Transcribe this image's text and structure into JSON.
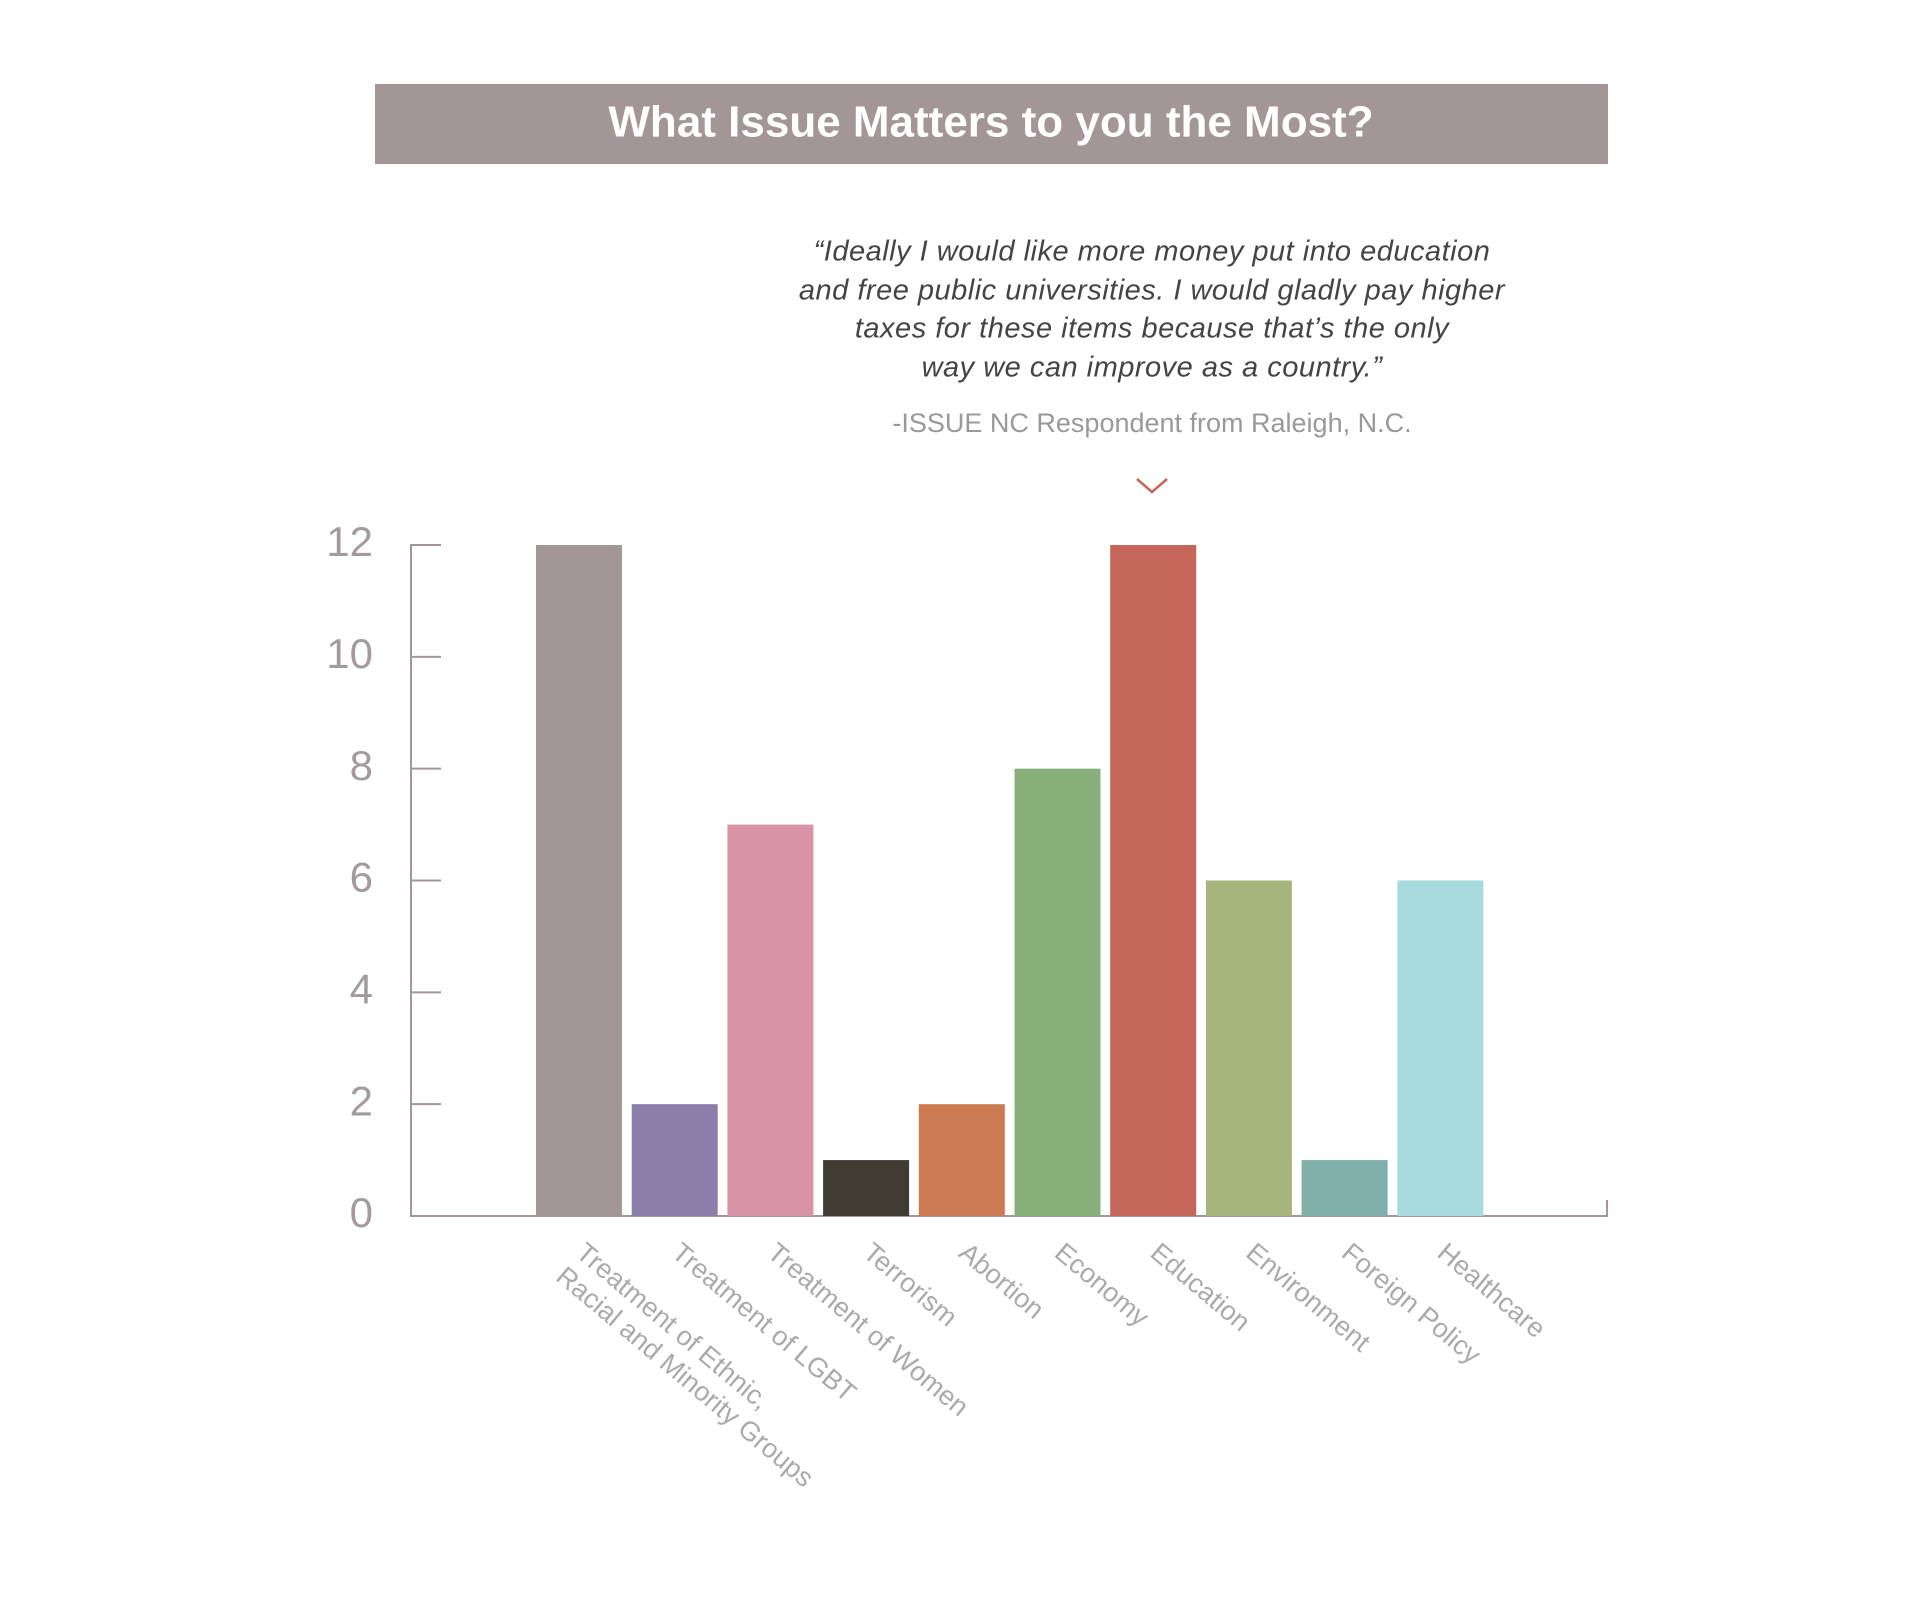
{
  "chart_data": {
    "type": "bar",
    "title": "What Issue Matters to you the Most?",
    "quote": [
      "“Ideally I would like more money put into education",
      "and free public universities. I would gladly pay higher",
      "taxes for these items because that’s the only",
      "way we can improve as a country.”"
    ],
    "attribution": "-ISSUE NC Respondent from Raleigh, N.C.",
    "categories": [
      "Treatment of Ethnic,\nRacial and Minority Groups",
      "Treatment of LGBT",
      "Treatment of Women",
      "Terrorism",
      "Abortion",
      "Economy",
      "Education",
      "Environment",
      "Foreign Policy",
      "Healthcare"
    ],
    "values": [
      12,
      2,
      7,
      1,
      2,
      8,
      12,
      6,
      1,
      6
    ],
    "colors": [
      "#a29696",
      "#8a7ea8",
      "#d894a6",
      "#403c33",
      "#cc7a53",
      "#87b07b",
      "#c4665a",
      "#a6b57b",
      "#7fb0aa",
      "#a7dbdd"
    ],
    "ylim": [
      0,
      12
    ],
    "yticks": [
      0,
      2,
      4,
      6,
      8,
      10,
      12
    ]
  }
}
